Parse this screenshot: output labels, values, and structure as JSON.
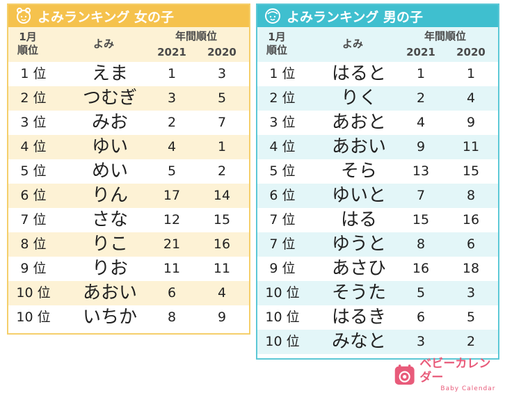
{
  "girls": {
    "title": "よみランキング 女の子",
    "icon": "girl-face-icon",
    "header": {
      "month_line1": "1月",
      "month_line2": "順位",
      "yomi": "よみ",
      "years_label": "年間順位",
      "y2021": "2021",
      "y2020": "2020"
    },
    "rows": [
      {
        "rank": "1 位",
        "yomi": "えま",
        "y2021": "1",
        "y2020": "3"
      },
      {
        "rank": "2 位",
        "yomi": "つむぎ",
        "y2021": "3",
        "y2020": "5"
      },
      {
        "rank": "3 位",
        "yomi": "みお",
        "y2021": "2",
        "y2020": "7"
      },
      {
        "rank": "4 位",
        "yomi": "ゆい",
        "y2021": "4",
        "y2020": "1"
      },
      {
        "rank": "5 位",
        "yomi": "めい",
        "y2021": "5",
        "y2020": "2"
      },
      {
        "rank": "6 位",
        "yomi": "りん",
        "y2021": "17",
        "y2020": "14"
      },
      {
        "rank": "7 位",
        "yomi": "さな",
        "y2021": "12",
        "y2020": "15"
      },
      {
        "rank": "8 位",
        "yomi": "りこ",
        "y2021": "21",
        "y2020": "16"
      },
      {
        "rank": "9 位",
        "yomi": "りお",
        "y2021": "11",
        "y2020": "11"
      },
      {
        "rank": "10 位",
        "yomi": "あおい",
        "y2021": "6",
        "y2020": "4"
      },
      {
        "rank": "10 位",
        "yomi": "いちか",
        "y2021": "8",
        "y2020": "9"
      }
    ]
  },
  "boys": {
    "title": "よみランキング 男の子",
    "icon": "boy-face-icon",
    "header": {
      "month_line1": "1月",
      "month_line2": "順位",
      "yomi": "よみ",
      "years_label": "年間順位",
      "y2021": "2021",
      "y2020": "2020"
    },
    "rows": [
      {
        "rank": "1 位",
        "yomi": "はると",
        "y2021": "1",
        "y2020": "1"
      },
      {
        "rank": "2 位",
        "yomi": "りく",
        "y2021": "2",
        "y2020": "4"
      },
      {
        "rank": "3 位",
        "yomi": "あおと",
        "y2021": "4",
        "y2020": "9"
      },
      {
        "rank": "4 位",
        "yomi": "あおい",
        "y2021": "9",
        "y2020": "11"
      },
      {
        "rank": "5 位",
        "yomi": "そら",
        "y2021": "13",
        "y2020": "15"
      },
      {
        "rank": "6 位",
        "yomi": "ゆいと",
        "y2021": "7",
        "y2020": "8"
      },
      {
        "rank": "7 位",
        "yomi": "はる",
        "y2021": "15",
        "y2020": "16"
      },
      {
        "rank": "7 位",
        "yomi": "ゆうと",
        "y2021": "8",
        "y2020": "6"
      },
      {
        "rank": "9 位",
        "yomi": "あさひ",
        "y2021": "16",
        "y2020": "18"
      },
      {
        "rank": "10 位",
        "yomi": "そうた",
        "y2021": "5",
        "y2020": "3"
      },
      {
        "rank": "10 位",
        "yomi": "はるき",
        "y2021": "6",
        "y2020": "5"
      },
      {
        "rank": "10 位",
        "yomi": "みなと",
        "y2021": "3",
        "y2020": "2"
      }
    ]
  },
  "logo": {
    "main": "ベビーカレンダー",
    "sub": "Baby Calendar",
    "icon": "baby-calendar-logo-icon"
  },
  "colors": {
    "girls_accent": "#f5c24d",
    "girls_stripe": "#fdf2d5",
    "boys_accent": "#3fbfcf",
    "boys_stripe": "#e3f6f8",
    "logo": "#e85b7a"
  }
}
